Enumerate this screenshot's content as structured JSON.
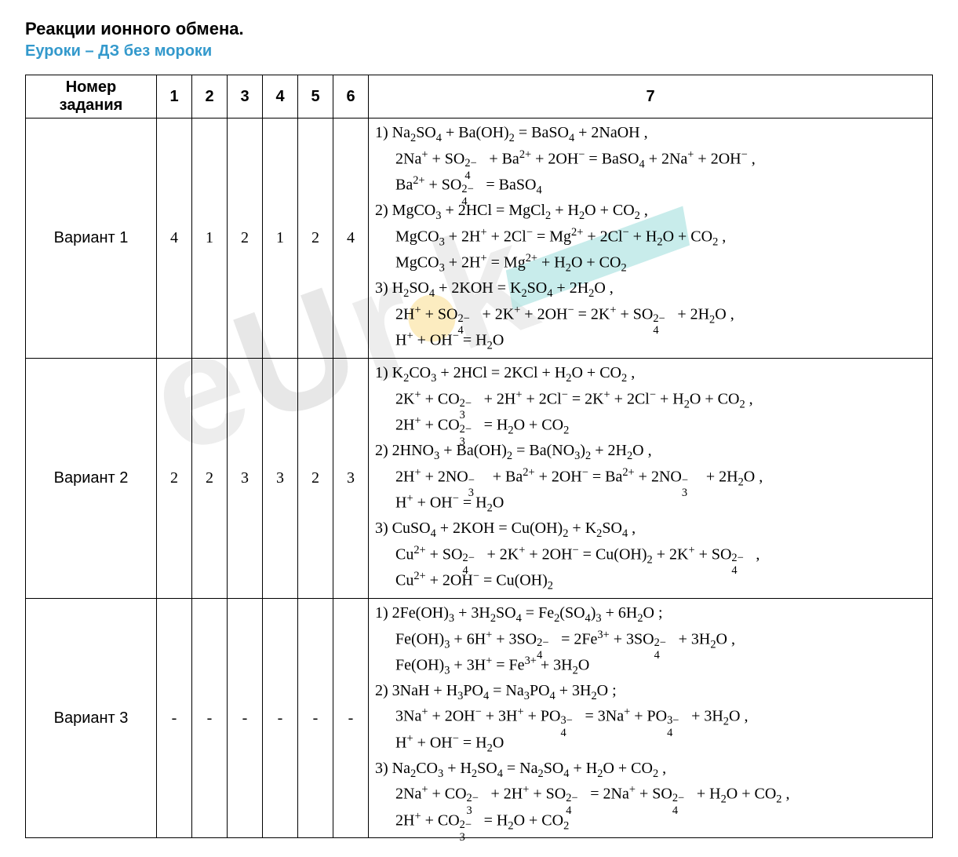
{
  "title": "Реакции ионного обмена.",
  "subtitle": "Еуроки – ДЗ без мороки",
  "table": {
    "header_label": "Номер задания",
    "columns": [
      "1",
      "2",
      "3",
      "4",
      "5",
      "6",
      "7"
    ],
    "rows": [
      {
        "label": "Вариант 1",
        "answers": [
          "4",
          "1",
          "2",
          "1",
          "2",
          "4"
        ],
        "equations": [
          "1) Na<sub>2</sub>SO<sub>4</sub> + Ba(OH)<sub>2</sub> = BaSO<sub>4</sub> + 2NaOH ,",
          "   2Na<sup>+</sup> + SO<span class='ss'><span class='top'>2−</span><span class='bot'>4</span></span> + Ba<sup>2+</sup> + 2OH<sup>−</sup> = BaSO<sub>4</sub> + 2Na<sup>+</sup> + 2OH<sup>−</sup> ,",
          "   Ba<sup>2+</sup> + SO<span class='ss'><span class='top'>2−</span><span class='bot'>4</span></span> = BaSO<sub>4</sub>",
          "2) MgCO<sub>3</sub> + 2HCl = MgCl<sub>2</sub> + H<sub>2</sub>O + CO<sub>2</sub> ,",
          "   MgCO<sub>3</sub> + 2H<sup>+</sup> + 2Cl<sup>−</sup> = Mg<sup>2+</sup> + 2Cl<sup>−</sup> + H<sub>2</sub>O + CO<sub>2</sub> ,",
          "   MgCO<sub>3</sub> + 2H<sup>+</sup> = Mg<sup>2+</sup> + H<sub>2</sub>O + CO<sub>2</sub>",
          "3) H<sub>2</sub>SO<sub>4</sub> + 2KOH = K<sub>2</sub>SO<sub>4</sub> + 2H<sub>2</sub>O ,",
          "   2H<sup>+</sup> + SO<span class='ss'><span class='top'>2−</span><span class='bot'>4</span></span> + 2K<sup>+</sup> + 2OH<sup>−</sup> = 2K<sup>+</sup> + SO<span class='ss'><span class='top'>2−</span><span class='bot'>4</span></span> + 2H<sub>2</sub>O ,",
          "   H<sup>+</sup> + OH<sup>−</sup> = H<sub>2</sub>O"
        ]
      },
      {
        "label": "Вариант 2",
        "answers": [
          "2",
          "2",
          "3",
          "3",
          "2",
          "3"
        ],
        "equations": [
          "1) K<sub>2</sub>CO<sub>3</sub> + 2HCl = 2KCl + H<sub>2</sub>O + CO<sub>2</sub> ,",
          "   2K<sup>+</sup> + CO<span class='ss'><span class='top'>2−</span><span class='bot'>3</span></span> + 2H<sup>+</sup> + 2Cl<sup>−</sup> = 2K<sup>+</sup> + 2Cl<sup>−</sup> + H<sub>2</sub>O + CO<sub>2</sub> ,",
          "   2H<sup>+</sup> + CO<span class='ss'><span class='top'>2−</span><span class='bot'>3</span></span> = H<sub>2</sub>O + CO<sub>2</sub>",
          "2) 2HNO<sub>3</sub> +  Ba(OH)<sub>2</sub> = Ba(NO<sub>3</sub>)<sub>2</sub> + 2H<sub>2</sub>O ,",
          "   2H<sup>+</sup> + 2NO<span class='ss'><span class='top'>−</span><span class='bot'>3</span></span> + Ba<sup>2+</sup> + 2OH<sup>−</sup> = Ba<sup>2+</sup> + 2NO<span class='ss'><span class='top'>−</span><span class='bot'>3</span></span> + 2H<sub>2</sub>O ,",
          "   H<sup>+</sup> + OH<sup>−</sup> = H<sub>2</sub>O",
          "3) CuSO<sub>4</sub> + 2KOH = Cu(OH)<sub>2</sub> + K<sub>2</sub>SO<sub>4</sub> ,",
          "   Cu<sup>2+</sup> + SO<span class='ss'><span class='top'>2−</span><span class='bot'>4</span></span> + 2K<sup>+</sup> + 2OH<sup>−</sup> = Cu(OH)<sub>2</sub> + 2K<sup>+</sup> + SO<span class='ss'><span class='top'>2−</span><span class='bot'>4</span></span> ,",
          "   Cu<sup>2+</sup> + 2OH<sup>−</sup> = Cu(OH)<sub>2</sub>"
        ]
      },
      {
        "label": "Вариант 3",
        "answers": [
          "-",
          "-",
          "-",
          "-",
          "-",
          "-"
        ],
        "equations": [
          "1) 2Fe(OH)<sub>3</sub> + 3H<sub>2</sub>SO<sub>4</sub> = Fe<sub>2</sub>(SO<sub>4</sub>)<sub>3</sub> + 6H<sub>2</sub>O ;",
          "   Fe(OH)<sub>3</sub> + 6H<sup>+</sup> + 3SO<span class='ss'><span class='top'>2−</span><span class='bot'>4</span></span> = 2Fe<sup>3+</sup> + 3SO<span class='ss'><span class='top'>2−</span><span class='bot'>4</span></span> + 3H<sub>2</sub>O ,",
          "   Fe(OH)<sub>3</sub> + 3H<sup>+</sup> = Fe<sup>3+</sup> + 3H<sub>2</sub>O",
          "2) 3NaH + H<sub>3</sub>PO<sub>4</sub> = Na<sub>3</sub>PO<sub>4</sub> + 3H<sub>2</sub>O ;",
          "   3Na<sup>+</sup> + 2OH<sup>−</sup> + 3H<sup>+</sup> + PO<span class='ss'><span class='top'>3−</span><span class='bot'>4</span></span> = 3Na<sup>+</sup> + PO<span class='ss'><span class='top'>3−</span><span class='bot'>4</span></span> + 3H<sub>2</sub>O ,",
          "   H<sup>+</sup> + OH<sup>−</sup> = H<sub>2</sub>O",
          "3) Na<sub>2</sub>CO<sub>3</sub> + H<sub>2</sub>SO<sub>4</sub> = Na<sub>2</sub>SO<sub>4</sub> + H<sub>2</sub>O + CO<sub>2</sub> ,",
          "   2Na<sup>+</sup> + CO<span class='ss'><span class='top'>2−</span><span class='bot'>3</span></span> + 2H<sup>+</sup> + SO<span class='ss'><span class='top'>2−</span><span class='bot'>4</span></span> = 2Na<sup>+</sup> + SO<span class='ss'><span class='top'>2−</span><span class='bot'>4</span></span> + H<sub>2</sub>O + CO<sub>2</sub> ,",
          "   2H<sup>+</sup> + CO<span class='ss'><span class='top'>2−</span><span class='bot'>3</span></span> = H<sub>2</sub>O + CO<sub>2</sub>"
        ]
      }
    ]
  },
  "styles": {
    "title_color": "#000000",
    "subtitle_color": "#3399cc",
    "border_color": "#000000",
    "font_family_ui": "Arial",
    "font_family_formula": "Times New Roman",
    "title_fontsize": 22,
    "subtitle_fontsize": 20,
    "cell_fontsize": 20
  }
}
